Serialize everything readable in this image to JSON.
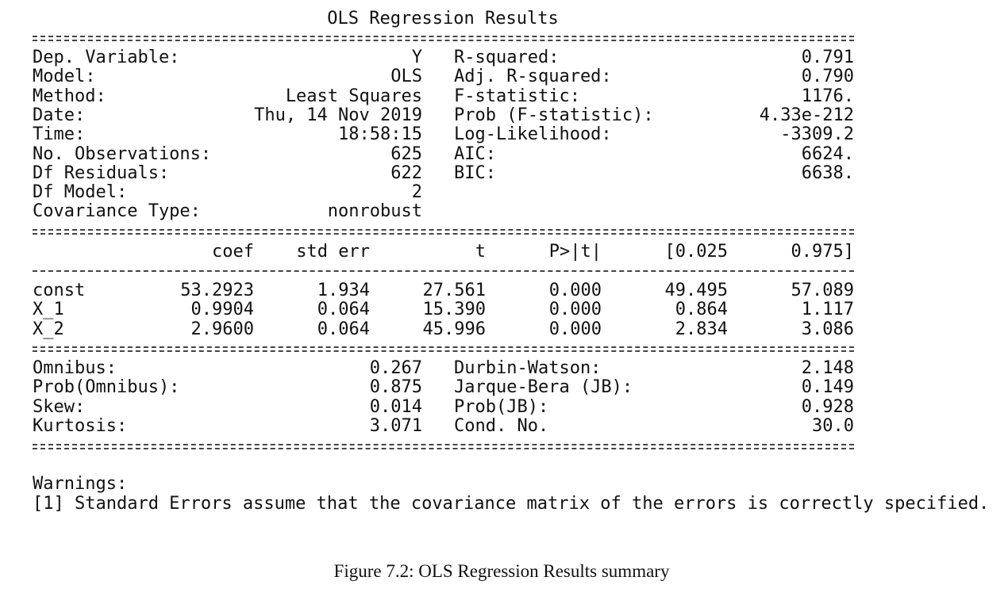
{
  "title": "OLS Regression Results",
  "info": {
    "left": [
      [
        "Dep. Variable:",
        "Y"
      ],
      [
        "Model:",
        "OLS"
      ],
      [
        "Method:",
        "Least Squares"
      ],
      [
        "Date:",
        "Thu, 14 Nov 2019"
      ],
      [
        "Time:",
        "18:58:15"
      ],
      [
        "No. Observations:",
        "625"
      ],
      [
        "Df Residuals:",
        "622"
      ],
      [
        "Df Model:",
        "2"
      ],
      [
        "Covariance Type:",
        "nonrobust"
      ]
    ],
    "right": [
      [
        "R-squared:",
        "0.791"
      ],
      [
        "Adj. R-squared:",
        "0.790"
      ],
      [
        "F-statistic:",
        "1176."
      ],
      [
        "Prob (F-statistic):",
        "4.33e-212"
      ],
      [
        "Log-Likelihood:",
        "-3309.2"
      ],
      [
        "AIC:",
        "6624."
      ],
      [
        "BIC:",
        "6638."
      ]
    ]
  },
  "coef": {
    "header": [
      "coef",
      "std err",
      "t",
      "P>|t|",
      "[0.025",
      "0.975]"
    ],
    "rows": [
      [
        "const",
        "53.2923",
        "1.934",
        "27.561",
        "0.000",
        "49.495",
        "57.089"
      ],
      [
        "X_1",
        "0.9904",
        "0.064",
        "15.390",
        "0.000",
        "0.864",
        "1.117"
      ],
      [
        "X_2",
        "2.9600",
        "0.064",
        "45.996",
        "0.000",
        "2.834",
        "3.086"
      ]
    ]
  },
  "diagnostics": {
    "left": [
      [
        "Omnibus:",
        "0.267"
      ],
      [
        "Prob(Omnibus):",
        "0.875"
      ],
      [
        "Skew:",
        "0.014"
      ],
      [
        "Kurtosis:",
        "3.071"
      ]
    ],
    "right": [
      [
        "Durbin-Watson:",
        "2.148"
      ],
      [
        "Jarque-Bera (JB):",
        "0.149"
      ],
      [
        "Prob(JB):",
        "0.928"
      ],
      [
        "Cond. No.",
        "30.0"
      ]
    ]
  },
  "warnings": {
    "heading": "Warnings:",
    "items": [
      "[1] Standard Errors assume that the covariance matrix of the errors is correctly specified."
    ]
  },
  "caption": "Figure 7.2: OLS Regression Results summary"
}
